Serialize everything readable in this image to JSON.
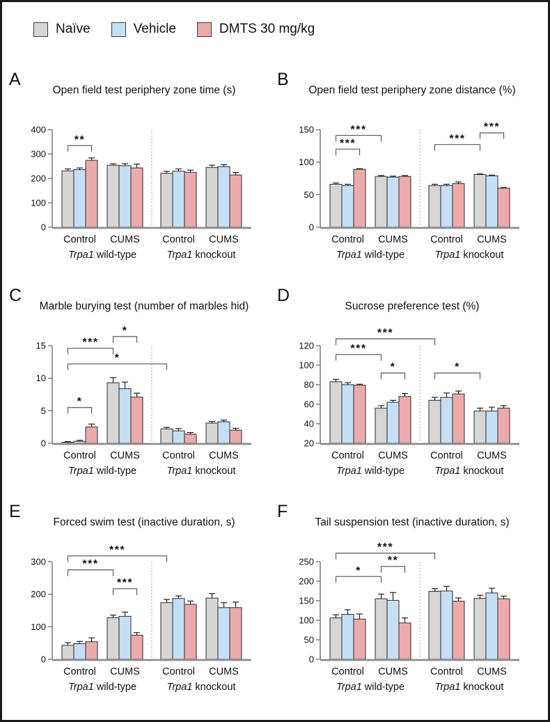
{
  "legend": {
    "items": [
      {
        "label": "Naïve",
        "color": "#d6d6d6"
      },
      {
        "label": "Vehicle",
        "color": "#c5dff5"
      },
      {
        "label": "DMTS 30 mg/kg",
        "color": "#ebabab"
      }
    ]
  },
  "colors": {
    "bar_stroke": "#3d3d3d",
    "axis": "#707070",
    "baseline": "#8c8c8c",
    "bracket": "#666666",
    "error_bar": "#222222",
    "separator": "#9a9a9a",
    "text": "#111111"
  },
  "xaxis": {
    "group_labels": [
      "Control",
      "CUMS",
      "Control",
      "CUMS"
    ],
    "genotype_labels": [
      {
        "italic": "Trpa1",
        "rest": " wild-type"
      },
      {
        "italic": "Trpa1",
        "rest": " knockout"
      }
    ]
  },
  "chart_data": [
    {
      "panel": "A",
      "type": "bar",
      "title": "Open field test periphery zone time (s)",
      "ylim": [
        0,
        400
      ],
      "yticks": [
        0,
        100,
        200,
        300,
        400
      ],
      "categories": [
        "Trpa1 wild-type Control",
        "Trpa1 wild-type CUMS",
        "Trpa1 knockout Control",
        "Trpa1 knockout CUMS"
      ],
      "series": [
        {
          "name": "Naïve",
          "values": [
            231,
            254,
            221,
            245
          ],
          "errors": [
            8,
            6,
            8,
            9
          ]
        },
        {
          "name": "Vehicle",
          "values": [
            236,
            252,
            230,
            248
          ],
          "errors": [
            7,
            8,
            9,
            8
          ]
        },
        {
          "name": "DMTS 30 mg/kg",
          "values": [
            274,
            243,
            225,
            214
          ],
          "errors": [
            10,
            16,
            9,
            10
          ]
        }
      ],
      "significance": [
        {
          "from": 0,
          "to": 2,
          "y": 335,
          "label": "**"
        }
      ]
    },
    {
      "panel": "B",
      "type": "bar",
      "title": "Open field test periphery zone distance (%)",
      "ylim": [
        0,
        150
      ],
      "yticks": [
        0,
        50,
        100,
        150
      ],
      "categories": [
        "Trpa1 wild-type Control",
        "Trpa1 wild-type CUMS",
        "Trpa1 knockout Control",
        "Trpa1 knockout CUMS"
      ],
      "series": [
        {
          "name": "Naïve",
          "values": [
            66,
            78,
            64,
            81
          ],
          "errors": [
            2,
            1.5,
            2,
            1
          ]
        },
        {
          "name": "Vehicle",
          "values": [
            64,
            77,
            64,
            79
          ],
          "errors": [
            2,
            1.5,
            2,
            1
          ]
        },
        {
          "name": "DMTS 30 mg/kg",
          "values": [
            89,
            78,
            67,
            60
          ],
          "errors": [
            1,
            1.5,
            2.5,
            1
          ]
        }
      ],
      "significance": [
        {
          "from": 0,
          "to": 2,
          "y": 120,
          "label": "***"
        },
        {
          "from": 0,
          "to": 3,
          "y": 141,
          "label": "***"
        },
        {
          "from": 6,
          "to": 9,
          "y": 127,
          "label": "***"
        },
        {
          "from": 9,
          "to": 11,
          "y": 145,
          "label": "***"
        }
      ]
    },
    {
      "panel": "C",
      "type": "bar",
      "title": "Marble burying test (number of marbles hid)",
      "ylim": [
        0,
        15
      ],
      "yticks": [
        0,
        5,
        10,
        15
      ],
      "categories": [
        "Trpa1 wild-type Control",
        "Trpa1 wild-type CUMS",
        "Trpa1 knockout Control",
        "Trpa1 knockout CUMS"
      ],
      "series": [
        {
          "name": "Naïve",
          "values": [
            0.15,
            9.3,
            2.2,
            3.1
          ],
          "errors": [
            0.1,
            0.8,
            0.25,
            0.25
          ]
        },
        {
          "name": "Vehicle",
          "values": [
            0.3,
            8.4,
            1.9,
            3.3
          ],
          "errors": [
            0.15,
            1,
            0.35,
            0.25
          ]
        },
        {
          "name": "DMTS 30 mg/kg",
          "values": [
            2.5,
            7.1,
            1.4,
            2
          ],
          "errors": [
            0.45,
            0.6,
            0.25,
            0.3
          ]
        }
      ],
      "significance": [
        {
          "from": 0,
          "to": 2,
          "y": 5.5,
          "label": "*"
        },
        {
          "from": 0,
          "to": 3,
          "y": 14.6,
          "label": "***"
        },
        {
          "from": 3,
          "to": 5,
          "y": 16.4,
          "label": "*"
        },
        {
          "from": 0,
          "to": 6,
          "y": 12.2,
          "label": "*"
        }
      ]
    },
    {
      "panel": "D",
      "type": "bar",
      "title": "Sucrose preference test (%)",
      "ylim": [
        20,
        120
      ],
      "yticks": [
        20,
        40,
        60,
        80,
        100,
        120
      ],
      "categories": [
        "Trpa1 wild-type Control",
        "Trpa1 wild-type CUMS",
        "Trpa1 knockout Control",
        "Trpa1 knockout CUMS"
      ],
      "series": [
        {
          "name": "Naïve",
          "values": [
            83,
            56,
            64,
            53
          ],
          "errors": [
            2.5,
            2.5,
            3,
            3
          ]
        },
        {
          "name": "Vehicle",
          "values": [
            80,
            62,
            67,
            53
          ],
          "errors": [
            2,
            2,
            4.5,
            4
          ]
        },
        {
          "name": "DMTS 30 mg/kg",
          "values": [
            79.5,
            68,
            70.5,
            56
          ],
          "errors": [
            1,
            3,
            3,
            2.5
          ]
        }
      ],
      "significance": [
        {
          "from": 0,
          "to": 3,
          "y": 111,
          "label": "***"
        },
        {
          "from": 3,
          "to": 5,
          "y": 92,
          "label": "*"
        },
        {
          "from": 0,
          "to": 6,
          "y": 127,
          "label": "***"
        },
        {
          "from": 6,
          "to": 9,
          "y": 92,
          "label": "*"
        }
      ]
    },
    {
      "panel": "E",
      "type": "bar",
      "title": "Forced swim test (inactive duration, s)",
      "ylim": [
        0,
        300
      ],
      "yticks": [
        0,
        100,
        200,
        300
      ],
      "categories": [
        "Trpa1 wild-type Control",
        "Trpa1 wild-type CUMS",
        "Trpa1 knockout Control",
        "Trpa1 knockout CUMS"
      ],
      "series": [
        {
          "name": "Naïve",
          "values": [
            43,
            128,
            174,
            188
          ],
          "errors": [
            8,
            8,
            10,
            14
          ]
        },
        {
          "name": "Vehicle",
          "values": [
            48,
            132,
            187,
            159
          ],
          "errors": [
            7,
            13,
            8,
            15
          ]
        },
        {
          "name": "DMTS 30 mg/kg",
          "values": [
            54,
            74,
            169,
            159
          ],
          "errors": [
            12,
            8,
            10,
            17
          ]
        }
      ],
      "significance": [
        {
          "from": 0,
          "to": 3,
          "y": 275,
          "label": "***"
        },
        {
          "from": 3,
          "to": 5,
          "y": 217,
          "label": "***"
        },
        {
          "from": 0,
          "to": 6,
          "y": 318,
          "label": "***"
        }
      ]
    },
    {
      "panel": "F",
      "type": "bar",
      "title": "Tail suspension test (inactive duration, s)",
      "ylim": [
        0,
        250
      ],
      "yticks": [
        0,
        50,
        100,
        150,
        200,
        250
      ],
      "categories": [
        "Trpa1 wild-type Control",
        "Trpa1 wild-type CUMS",
        "Trpa1 knockout Control",
        "Trpa1 knockout CUMS"
      ],
      "series": [
        {
          "name": "Naïve",
          "values": [
            106,
            155,
            174,
            156
          ],
          "errors": [
            8,
            12,
            7,
            8
          ]
        },
        {
          "name": "Vehicle",
          "values": [
            115,
            151,
            175,
            170
          ],
          "errors": [
            12,
            20,
            12,
            12
          ]
        },
        {
          "name": "DMTS 30 mg/kg",
          "values": [
            103,
            93,
            149,
            155
          ],
          "errors": [
            13,
            13,
            8,
            7
          ]
        }
      ],
      "significance": [
        {
          "from": 0,
          "to": 3,
          "y": 212,
          "label": "*"
        },
        {
          "from": 3,
          "to": 5,
          "y": 238,
          "label": "**"
        },
        {
          "from": 0,
          "to": 6,
          "y": 272,
          "label": "***"
        }
      ]
    }
  ]
}
